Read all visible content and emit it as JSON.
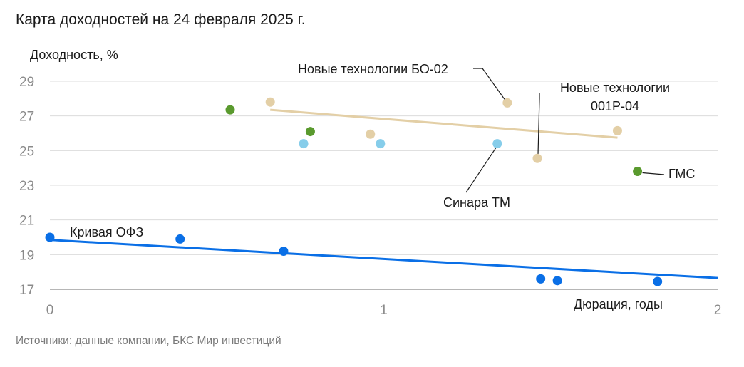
{
  "title": "Карта доходностей на 24 февраля 2025 г.",
  "source": "Источники: данные компании, БКС Мир инвестиций",
  "chart_data": {
    "type": "scatter",
    "title": "Карта доходностей на 24 февраля 2025 г.",
    "xlabel": "Дюрация, годы",
    "ylabel": "Доходность, %",
    "xlim": [
      0,
      2
    ],
    "ylim": [
      17,
      29
    ],
    "xticks": [
      "0",
      "1",
      "2"
    ],
    "yticks": [
      "17",
      "19",
      "21",
      "23",
      "25",
      "27",
      "29"
    ],
    "grid": true,
    "colors": {
      "ofz": "#0a6fe6",
      "beige": "#e3cfa6",
      "green": "#5a9a2e",
      "lightblue": "#86cdea",
      "grid": "#dcdcdc",
      "axis": "#8a8a8a"
    },
    "series": [
      {
        "name": "Кривая ОФЗ",
        "color": "#0a6fe6",
        "points": [
          [
            0.0,
            20.0
          ],
          [
            0.39,
            19.9
          ],
          [
            0.7,
            19.2
          ],
          [
            1.47,
            17.6
          ],
          [
            1.52,
            17.5
          ],
          [
            1.82,
            17.45
          ]
        ],
        "trendline": [
          [
            0.0,
            19.85
          ],
          [
            2.0,
            17.65
          ]
        ]
      },
      {
        "name": "",
        "color": "#e3cfa6",
        "points": [
          [
            0.66,
            27.8
          ],
          [
            0.96,
            25.95
          ],
          [
            1.37,
            27.75
          ],
          [
            1.46,
            24.55
          ],
          [
            1.7,
            26.15
          ]
        ],
        "trendline": [
          [
            0.66,
            27.35
          ],
          [
            1.7,
            25.75
          ]
        ]
      },
      {
        "name": "",
        "color": "#5a9a2e",
        "points": [
          [
            0.54,
            27.35
          ],
          [
            0.78,
            26.1
          ],
          [
            1.76,
            23.8
          ]
        ]
      },
      {
        "name": "",
        "color": "#86cdea",
        "points": [
          [
            0.76,
            25.4
          ],
          [
            0.99,
            25.4
          ],
          [
            1.34,
            25.4
          ]
        ]
      }
    ],
    "annotations": [
      {
        "text": "Новые технологии БО-02",
        "point": [
          1.37,
          27.75
        ]
      },
      {
        "text": "Новые технологии",
        "text2": "001Р-04",
        "point": [
          1.46,
          24.55
        ]
      },
      {
        "text": "Синара ТМ",
        "point": [
          1.34,
          25.4
        ]
      },
      {
        "text": "ГМС",
        "point": [
          1.76,
          23.8
        ]
      },
      {
        "text": "Кривая ОФЗ",
        "point": [
          0.0,
          20.0
        ]
      }
    ]
  }
}
